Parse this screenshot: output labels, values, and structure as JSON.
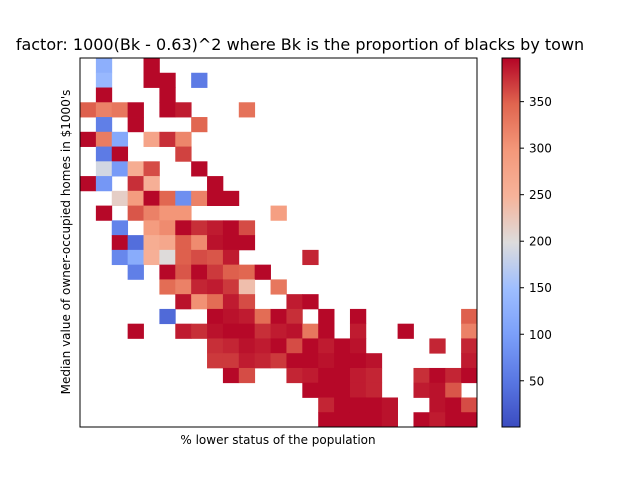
{
  "chart_data": {
    "type": "heatmap",
    "title": "factor: 1000(Bk - 0.63)^2 where Bk is the proportion of blacks by town",
    "xlabel": "% lower status of the population",
    "ylabel": "Median value of owner-occupied homes in $1000's",
    "x_ticks_shown": false,
    "y_ticks_shown": false,
    "grid": false,
    "colormap": "coolwarm",
    "colorbar": {
      "ticks": [
        "50",
        "100",
        "150",
        "200",
        "250",
        "300",
        "350"
      ],
      "tick_values": [
        50,
        100,
        150,
        200,
        250,
        300,
        350
      ],
      "range": [
        0.32,
        396.9
      ]
    },
    "n_cols": 25,
    "n_rows": 25,
    "cells": [
      [
        1,
        24,
        125
      ],
      [
        1,
        23,
        140
      ],
      [
        1,
        22,
        395
      ],
      [
        4,
        24,
        395
      ],
      [
        4,
        23,
        395
      ],
      [
        5,
        23,
        395
      ],
      [
        7,
        23,
        55
      ],
      [
        5,
        22,
        395
      ],
      [
        0,
        21,
        350
      ],
      [
        1,
        21,
        320
      ],
      [
        2,
        21,
        330
      ],
      [
        3,
        21,
        395
      ],
      [
        5,
        21,
        395
      ],
      [
        6,
        21,
        385
      ],
      [
        10,
        21,
        335
      ],
      [
        1,
        20,
        60
      ],
      [
        3,
        20,
        395
      ],
      [
        7,
        20,
        345
      ],
      [
        0,
        19,
        395
      ],
      [
        1,
        19,
        325
      ],
      [
        2,
        19,
        115
      ],
      [
        4,
        19,
        275
      ],
      [
        5,
        19,
        375
      ],
      [
        6,
        19,
        315
      ],
      [
        1,
        18,
        55
      ],
      [
        2,
        18,
        395
      ],
      [
        6,
        18,
        365
      ],
      [
        1,
        17,
        190
      ],
      [
        2,
        17,
        95
      ],
      [
        3,
        17,
        260
      ],
      [
        4,
        17,
        360
      ],
      [
        7,
        17,
        395
      ],
      [
        0,
        16,
        395
      ],
      [
        1,
        16,
        90
      ],
      [
        3,
        16,
        375
      ],
      [
        4,
        16,
        255
      ],
      [
        8,
        16,
        395
      ],
      [
        2,
        15,
        215
      ],
      [
        3,
        15,
        290
      ],
      [
        4,
        15,
        395
      ],
      [
        5,
        15,
        345
      ],
      [
        6,
        15,
        80
      ],
      [
        7,
        15,
        320
      ],
      [
        8,
        15,
        395
      ],
      [
        9,
        15,
        395
      ],
      [
        1,
        14,
        395
      ],
      [
        3,
        14,
        355
      ],
      [
        4,
        14,
        320
      ],
      [
        5,
        14,
        300
      ],
      [
        6,
        14,
        300
      ],
      [
        12,
        14,
        285
      ],
      [
        2,
        13,
        65
      ],
      [
        4,
        13,
        290
      ],
      [
        5,
        13,
        310
      ],
      [
        6,
        13,
        395
      ],
      [
        7,
        13,
        375
      ],
      [
        8,
        13,
        385
      ],
      [
        9,
        13,
        395
      ],
      [
        10,
        13,
        360
      ],
      [
        2,
        12,
        395
      ],
      [
        3,
        12,
        40
      ],
      [
        4,
        12,
        260
      ],
      [
        5,
        12,
        270
      ],
      [
        6,
        12,
        350
      ],
      [
        7,
        12,
        310
      ],
      [
        8,
        12,
        390
      ],
      [
        9,
        12,
        395
      ],
      [
        10,
        12,
        395
      ],
      [
        2,
        11,
        70
      ],
      [
        3,
        11,
        120
      ],
      [
        4,
        11,
        255
      ],
      [
        5,
        11,
        200
      ],
      [
        6,
        11,
        350
      ],
      [
        7,
        11,
        360
      ],
      [
        8,
        11,
        355
      ],
      [
        9,
        11,
        385
      ],
      [
        14,
        11,
        380
      ],
      [
        3,
        10,
        60
      ],
      [
        5,
        10,
        395
      ],
      [
        6,
        10,
        355
      ],
      [
        7,
        10,
        395
      ],
      [
        8,
        10,
        370
      ],
      [
        9,
        10,
        350
      ],
      [
        10,
        10,
        345
      ],
      [
        11,
        10,
        395
      ],
      [
        5,
        9,
        340
      ],
      [
        6,
        9,
        320
      ],
      [
        7,
        9,
        380
      ],
      [
        8,
        9,
        385
      ],
      [
        9,
        9,
        370
      ],
      [
        10,
        9,
        235
      ],
      [
        12,
        9,
        330
      ],
      [
        6,
        8,
        390
      ],
      [
        7,
        8,
        305
      ],
      [
        8,
        8,
        340
      ],
      [
        9,
        8,
        385
      ],
      [
        10,
        8,
        360
      ],
      [
        13,
        8,
        385
      ],
      [
        14,
        8,
        395
      ],
      [
        5,
        7,
        35
      ],
      [
        8,
        7,
        395
      ],
      [
        9,
        7,
        390
      ],
      [
        10,
        7,
        385
      ],
      [
        11,
        7,
        340
      ],
      [
        12,
        7,
        395
      ],
      [
        13,
        7,
        375
      ],
      [
        15,
        7,
        395
      ],
      [
        17,
        7,
        395
      ],
      [
        24,
        7,
        350
      ],
      [
        3,
        6,
        395
      ],
      [
        6,
        6,
        385
      ],
      [
        7,
        6,
        375
      ],
      [
        8,
        6,
        390
      ],
      [
        9,
        6,
        395
      ],
      [
        10,
        6,
        395
      ],
      [
        11,
        6,
        375
      ],
      [
        12,
        6,
        385
      ],
      [
        13,
        6,
        390
      ],
      [
        14,
        6,
        330
      ],
      [
        15,
        6,
        395
      ],
      [
        17,
        6,
        385
      ],
      [
        20,
        6,
        395
      ],
      [
        24,
        6,
        320
      ],
      [
        8,
        5,
        375
      ],
      [
        9,
        5,
        380
      ],
      [
        10,
        5,
        390
      ],
      [
        11,
        5,
        385
      ],
      [
        12,
        5,
        395
      ],
      [
        13,
        5,
        360
      ],
      [
        14,
        5,
        395
      ],
      [
        15,
        5,
        385
      ],
      [
        16,
        5,
        395
      ],
      [
        17,
        5,
        390
      ],
      [
        22,
        5,
        380
      ],
      [
        24,
        5,
        380
      ],
      [
        8,
        4,
        370
      ],
      [
        9,
        4,
        370
      ],
      [
        10,
        4,
        385
      ],
      [
        11,
        4,
        380
      ],
      [
        12,
        4,
        370
      ],
      [
        13,
        4,
        395
      ],
      [
        14,
        4,
        395
      ],
      [
        15,
        4,
        390
      ],
      [
        16,
        4,
        395
      ],
      [
        17,
        4,
        395
      ],
      [
        18,
        4,
        390
      ],
      [
        24,
        4,
        385
      ],
      [
        9,
        3,
        395
      ],
      [
        10,
        3,
        360
      ],
      [
        13,
        3,
        380
      ],
      [
        14,
        3,
        385
      ],
      [
        15,
        3,
        395
      ],
      [
        16,
        3,
        395
      ],
      [
        17,
        3,
        385
      ],
      [
        18,
        3,
        380
      ],
      [
        21,
        3,
        375
      ],
      [
        22,
        3,
        395
      ],
      [
        23,
        3,
        380
      ],
      [
        24,
        3,
        395
      ],
      [
        14,
        2,
        395
      ],
      [
        15,
        2,
        395
      ],
      [
        16,
        2,
        395
      ],
      [
        17,
        2,
        385
      ],
      [
        18,
        2,
        380
      ],
      [
        21,
        2,
        385
      ],
      [
        22,
        2,
        390
      ],
      [
        23,
        2,
        355
      ],
      [
        15,
        1,
        380
      ],
      [
        16,
        1,
        395
      ],
      [
        17,
        1,
        395
      ],
      [
        18,
        1,
        395
      ],
      [
        19,
        1,
        390
      ],
      [
        22,
        1,
        390
      ],
      [
        23,
        1,
        395
      ],
      [
        24,
        1,
        360
      ],
      [
        15,
        0,
        395
      ],
      [
        16,
        0,
        395
      ],
      [
        17,
        0,
        395
      ],
      [
        18,
        0,
        395
      ],
      [
        19,
        0,
        390
      ],
      [
        21,
        0,
        395
      ],
      [
        22,
        0,
        385
      ],
      [
        23,
        0,
        395
      ],
      [
        24,
        0,
        395
      ]
    ]
  }
}
